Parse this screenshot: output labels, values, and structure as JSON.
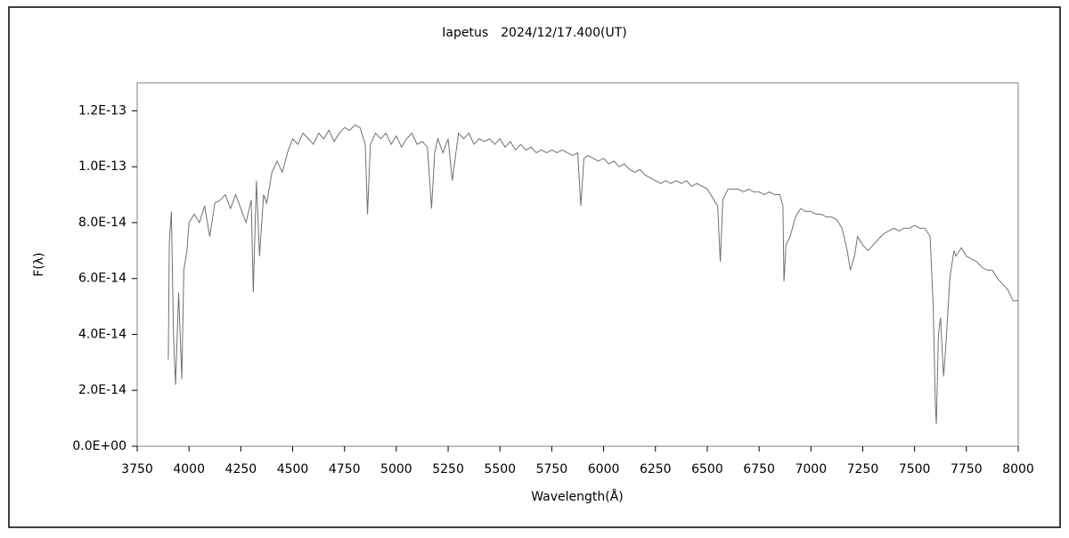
{
  "chart_data": {
    "type": "line",
    "title": "Iapetus　2024/12/17.400(UT)",
    "x_label": "Wavelength(Å)",
    "y_label": "F(λ)",
    "xlim": [
      3750,
      8000
    ],
    "xticks": [
      3750,
      4000,
      4250,
      4500,
      4750,
      5000,
      5250,
      5500,
      5750,
      6000,
      6250,
      6500,
      6750,
      7000,
      7250,
      7500,
      7750,
      8000
    ],
    "ylim": [
      0,
      1.3e-13
    ],
    "yticks": [
      {
        "value": 0,
        "label": "0.0E+00"
      },
      {
        "value": 2e-14,
        "label": "2.0E-14"
      },
      {
        "value": 4e-14,
        "label": "4.0E-14"
      },
      {
        "value": 6e-14,
        "label": "6.0E-14"
      },
      {
        "value": 8e-14,
        "label": "8.0E-14"
      },
      {
        "value": 1e-13,
        "label": "1.0E-13"
      },
      {
        "value": 1.2e-13,
        "label": "1.2E-13"
      }
    ],
    "grid": false,
    "color": "#707070",
    "x": [
      3900,
      3905,
      3915,
      3925,
      3935,
      3950,
      3965,
      3975,
      3990,
      4000,
      4025,
      4050,
      4075,
      4100,
      4125,
      4150,
      4175,
      4200,
      4225,
      4250,
      4275,
      4300,
      4310,
      4325,
      4340,
      4360,
      4375,
      4400,
      4425,
      4450,
      4475,
      4500,
      4525,
      4550,
      4575,
      4600,
      4625,
      4650,
      4675,
      4700,
      4725,
      4750,
      4775,
      4800,
      4825,
      4850,
      4861,
      4875,
      4900,
      4925,
      4950,
      4975,
      5000,
      5025,
      5050,
      5075,
      5100,
      5125,
      5150,
      5170,
      5185,
      5200,
      5225,
      5250,
      5270,
      5300,
      5325,
      5350,
      5375,
      5400,
      5425,
      5450,
      5475,
      5500,
      5525,
      5550,
      5575,
      5600,
      5625,
      5650,
      5675,
      5700,
      5725,
      5750,
      5775,
      5800,
      5825,
      5850,
      5875,
      5890,
      5905,
      5925,
      5950,
      5975,
      6000,
      6025,
      6050,
      6075,
      6100,
      6125,
      6150,
      6175,
      6200,
      6225,
      6250,
      6275,
      6300,
      6325,
      6350,
      6375,
      6400,
      6425,
      6450,
      6475,
      6500,
      6525,
      6550,
      6563,
      6575,
      6600,
      6625,
      6650,
      6675,
      6700,
      6725,
      6750,
      6775,
      6800,
      6825,
      6850,
      6865,
      6870,
      6880,
      6900,
      6925,
      6950,
      6975,
      7000,
      7025,
      7050,
      7075,
      7100,
      7125,
      7150,
      7175,
      7190,
      7210,
      7225,
      7250,
      7275,
      7300,
      7325,
      7350,
      7375,
      7400,
      7425,
      7450,
      7475,
      7500,
      7525,
      7550,
      7575,
      7590,
      7600,
      7605,
      7615,
      7625,
      7640,
      7650,
      7670,
      7690,
      7700,
      7725,
      7750,
      7775,
      7800,
      7825,
      7850,
      7875,
      7900,
      7925,
      7950,
      7975,
      8000
    ],
    "values": [
      3.1e-14,
      7.3e-14,
      8.4e-14,
      4e-14,
      2.2e-14,
      5.5e-14,
      2.4e-14,
      6.3e-14,
      7e-14,
      8e-14,
      8.3e-14,
      8e-14,
      8.6e-14,
      7.5e-14,
      8.7e-14,
      8.8e-14,
      9e-14,
      8.5e-14,
      9e-14,
      8.5e-14,
      8e-14,
      8.8e-14,
      5.5e-14,
      9.5e-14,
      6.8e-14,
      9e-14,
      8.7e-14,
      9.8e-14,
      1.02e-13,
      9.8e-14,
      1.05e-13,
      1.1e-13,
      1.08e-13,
      1.12e-13,
      1.1e-13,
      1.08e-13,
      1.12e-13,
      1.1e-13,
      1.13e-13,
      1.09e-13,
      1.12e-13,
      1.14e-13,
      1.13e-13,
      1.15e-13,
      1.14e-13,
      1.08e-13,
      8.3e-14,
      1.08e-13,
      1.12e-13,
      1.1e-13,
      1.12e-13,
      1.08e-13,
      1.11e-13,
      1.07e-13,
      1.1e-13,
      1.12e-13,
      1.08e-13,
      1.09e-13,
      1.07e-13,
      8.5e-14,
      1.05e-13,
      1.1e-13,
      1.05e-13,
      1.1e-13,
      9.5e-14,
      1.12e-13,
      1.1e-13,
      1.12e-13,
      1.08e-13,
      1.1e-13,
      1.09e-13,
      1.1e-13,
      1.08e-13,
      1.1e-13,
      1.07e-13,
      1.09e-13,
      1.06e-13,
      1.08e-13,
      1.06e-13,
      1.07e-13,
      1.05e-13,
      1.06e-13,
      1.05e-13,
      1.06e-13,
      1.05e-13,
      1.06e-13,
      1.05e-13,
      1.04e-13,
      1.05e-13,
      8.6e-14,
      1.03e-13,
      1.04e-13,
      1.03e-13,
      1.02e-13,
      1.03e-13,
      1.01e-13,
      1.02e-13,
      1e-13,
      1.01e-13,
      9.9e-14,
      9.8e-14,
      9.9e-14,
      9.7e-14,
      9.6e-14,
      9.5e-14,
      9.4e-14,
      9.5e-14,
      9.4e-14,
      9.5e-14,
      9.4e-14,
      9.5e-14,
      9.3e-14,
      9.4e-14,
      9.3e-14,
      9.2e-14,
      8.9e-14,
      8.6e-14,
      6.6e-14,
      8.8e-14,
      9.2e-14,
      9.2e-14,
      9.2e-14,
      9.1e-14,
      9.2e-14,
      9.1e-14,
      9.1e-14,
      9e-14,
      9.1e-14,
      9e-14,
      9e-14,
      8.6e-14,
      5.9e-14,
      7.2e-14,
      7.5e-14,
      8.2e-14,
      8.5e-14,
      8.4e-14,
      8.4e-14,
      8.3e-14,
      8.3e-14,
      8.2e-14,
      8.2e-14,
      8.1e-14,
      7.8e-14,
      7e-14,
      6.3e-14,
      6.8e-14,
      7.5e-14,
      7.2e-14,
      7e-14,
      7.2e-14,
      7.4e-14,
      7.6e-14,
      7.7e-14,
      7.8e-14,
      7.7e-14,
      7.8e-14,
      7.8e-14,
      7.9e-14,
      7.8e-14,
      7.8e-14,
      7.5e-14,
      5e-14,
      1.5e-14,
      8e-15,
      4e-14,
      4.6e-14,
      2.5e-14,
      3.5e-14,
      6e-14,
      7e-14,
      6.8e-14,
      7.1e-14,
      6.8e-14,
      6.7e-14,
      6.6e-14,
      6.4e-14,
      6.3e-14,
      6.3e-14,
      6e-14,
      5.8e-14,
      5.6e-14,
      5.2e-14,
      5.2e-14
    ]
  }
}
